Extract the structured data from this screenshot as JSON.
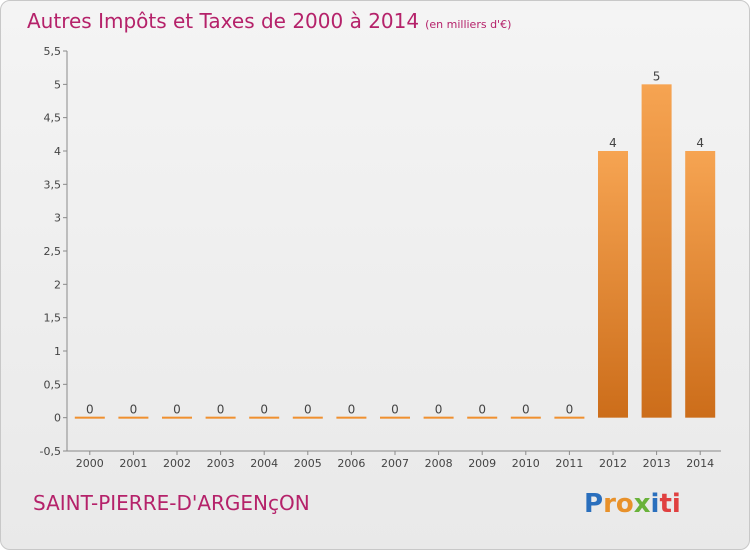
{
  "chart_data": {
    "type": "bar",
    "title": "Autres Impôts et Taxes de 2000 à 2014",
    "unit": "(en milliers d'€)",
    "categories": [
      "2000",
      "2001",
      "2002",
      "2003",
      "2004",
      "2005",
      "2006",
      "2007",
      "2008",
      "2009",
      "2010",
      "2011",
      "2012",
      "2013",
      "2014"
    ],
    "values": [
      0,
      0,
      0,
      0,
      0,
      0,
      0,
      0,
      0,
      0,
      0,
      0,
      4,
      5,
      4
    ],
    "data_labels": [
      "0",
      "0",
      "0",
      "0",
      "0",
      "0",
      "0",
      "0",
      "0",
      "0",
      "0",
      "0",
      "4",
      "5",
      "4"
    ],
    "ylim": [
      -0.5,
      5.5
    ],
    "yticks": [
      "-0,5",
      "0",
      "0,5",
      "1",
      "1,5",
      "2",
      "2,5",
      "3",
      "3,5",
      "4",
      "4,5",
      "5",
      "5,5"
    ],
    "ytick_values": [
      -0.5,
      0,
      0.5,
      1,
      1.5,
      2,
      2.5,
      3,
      3.5,
      4,
      4.5,
      5,
      5.5
    ],
    "grid": false,
    "bar_color": "#f0902f"
  },
  "footer": {
    "commune": "SAINT-PIERRE-D'ARGENçON",
    "logo": [
      "P",
      "r",
      "o",
      "x",
      "i",
      "ti"
    ]
  }
}
